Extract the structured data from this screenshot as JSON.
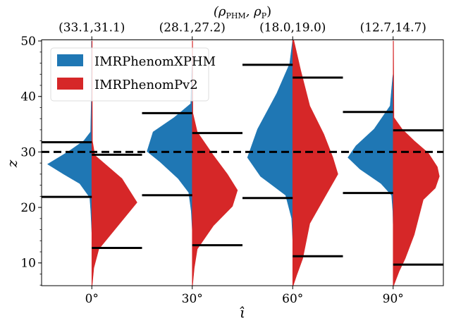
{
  "chart_data": {
    "type": "violin",
    "title": "(ρPHM, ρP)",
    "title_parts": {
      "open": "(ρ",
      "sub1": "PHM",
      "mid": ", ρ",
      "sub2": "P",
      "close": ")"
    },
    "xlabel": "ι̂",
    "ylabel": "z",
    "categories": [
      "0°",
      "30°",
      "60°",
      "90°"
    ],
    "top_tick_labels": [
      "(33.1,31.1)",
      "(28.1,27.2)",
      "(18.0,19.0)",
      "(12.7,14.7)"
    ],
    "xlim": [
      -0.5,
      3.5
    ],
    "ylim": [
      5.9,
      50.2
    ],
    "yticks": [
      10,
      20,
      30,
      40,
      50
    ],
    "yminor_step": 2,
    "injected_value": 30,
    "grid": false,
    "legend_placement": "top-left",
    "series": [
      {
        "name": "IMRPhenomXPHM",
        "color": "#1f77b4",
        "side": "left",
        "interval_width": 0.5,
        "intervals": [
          [
            21.9,
            31.75
          ],
          [
            22.2,
            37.0
          ],
          [
            21.7,
            45.7
          ],
          [
            22.6,
            37.2
          ]
        ],
        "profiles": [
          [
            [
              15.5,
              0
            ],
            [
              19.3,
              0.01
            ],
            [
              21.8,
              0.02
            ],
            [
              24.3,
              0.12
            ],
            [
              26.0,
              0.28
            ],
            [
              27.8,
              0.44
            ],
            [
              30.1,
              0.23
            ],
            [
              32.0,
              0.08
            ],
            [
              33.6,
              0.012
            ],
            [
              40,
              0.004
            ],
            [
              50,
              0.003
            ]
          ],
          [
            [
              16,
              0
            ],
            [
              19.3,
              0.01
            ],
            [
              22.7,
              0.035
            ],
            [
              25.2,
              0.14
            ],
            [
              28.2,
              0.32
            ],
            [
              30.1,
              0.45
            ],
            [
              33.6,
              0.39
            ],
            [
              36.2,
              0.18
            ],
            [
              38.7,
              0.015
            ],
            [
              45,
              0.004
            ],
            [
              48,
              0
            ]
          ],
          [
            [
              14.2,
              0
            ],
            [
              18.0,
              0.01
            ],
            [
              22.2,
              0.07
            ],
            [
              25.6,
              0.32
            ],
            [
              29.0,
              0.45
            ],
            [
              34.1,
              0.35
            ],
            [
              40.5,
              0.16
            ],
            [
              45.9,
              0.03
            ],
            [
              50.2,
              0
            ]
          ],
          [
            [
              17,
              0
            ],
            [
              19.3,
              0.003
            ],
            [
              22.2,
              0.015
            ],
            [
              24.3,
              0.12
            ],
            [
              26.9,
              0.33
            ],
            [
              29.0,
              0.45
            ],
            [
              31.1,
              0.37
            ],
            [
              34.1,
              0.19
            ],
            [
              38.3,
              0.03
            ],
            [
              43.4,
              0.005
            ],
            [
              44,
              0
            ]
          ]
        ]
      },
      {
        "name": "IMRPhenomPv2",
        "color": "#d62728",
        "side": "right",
        "interval_width": 0.5,
        "intervals": [
          [
            12.7,
            29.5
          ],
          [
            13.2,
            33.4
          ],
          [
            11.2,
            43.4
          ],
          [
            9.7,
            33.9
          ]
        ],
        "profiles": [
          [
            [
              5.9,
              0.003
            ],
            [
              9.1,
              0.02
            ],
            [
              12.5,
              0.07
            ],
            [
              16.7,
              0.26
            ],
            [
              20.9,
              0.45
            ],
            [
              25.2,
              0.3
            ],
            [
              29.4,
              0.03
            ],
            [
              32,
              0.006
            ],
            [
              50,
              0.004
            ]
          ],
          [
            [
              5.9,
              0.003
            ],
            [
              9.1,
              0.02
            ],
            [
              12.5,
              0.05
            ],
            [
              16.7,
              0.21
            ],
            [
              20.2,
              0.4
            ],
            [
              23.1,
              0.45
            ],
            [
              26.0,
              0.35
            ],
            [
              29.4,
              0.21
            ],
            [
              33.6,
              0.05
            ],
            [
              37,
              0.006
            ],
            [
              50,
              0.004
            ]
          ],
          [
            [
              5.9,
              0.005
            ],
            [
              7.8,
              0.04
            ],
            [
              10.8,
              0.1
            ],
            [
              17.1,
              0.17
            ],
            [
              22.2,
              0.33
            ],
            [
              26.0,
              0.45
            ],
            [
              29.0,
              0.4
            ],
            [
              33.2,
              0.31
            ],
            [
              38.3,
              0.17
            ],
            [
              44.7,
              0.08
            ],
            [
              50.2,
              0.01
            ]
          ],
          [
            [
              5.9,
              0.005
            ],
            [
              8.5,
              0.06
            ],
            [
              10.8,
              0.12
            ],
            [
              15.1,
              0.21
            ],
            [
              19.3,
              0.27
            ],
            [
              21.4,
              0.3
            ],
            [
              23.5,
              0.42
            ],
            [
              25.6,
              0.46
            ],
            [
              27.3,
              0.44
            ],
            [
              29.8,
              0.35
            ],
            [
              32.0,
              0.21
            ],
            [
              34.1,
              0.09
            ],
            [
              36.2,
              0.008
            ],
            [
              50,
              0.004
            ]
          ]
        ]
      }
    ]
  }
}
